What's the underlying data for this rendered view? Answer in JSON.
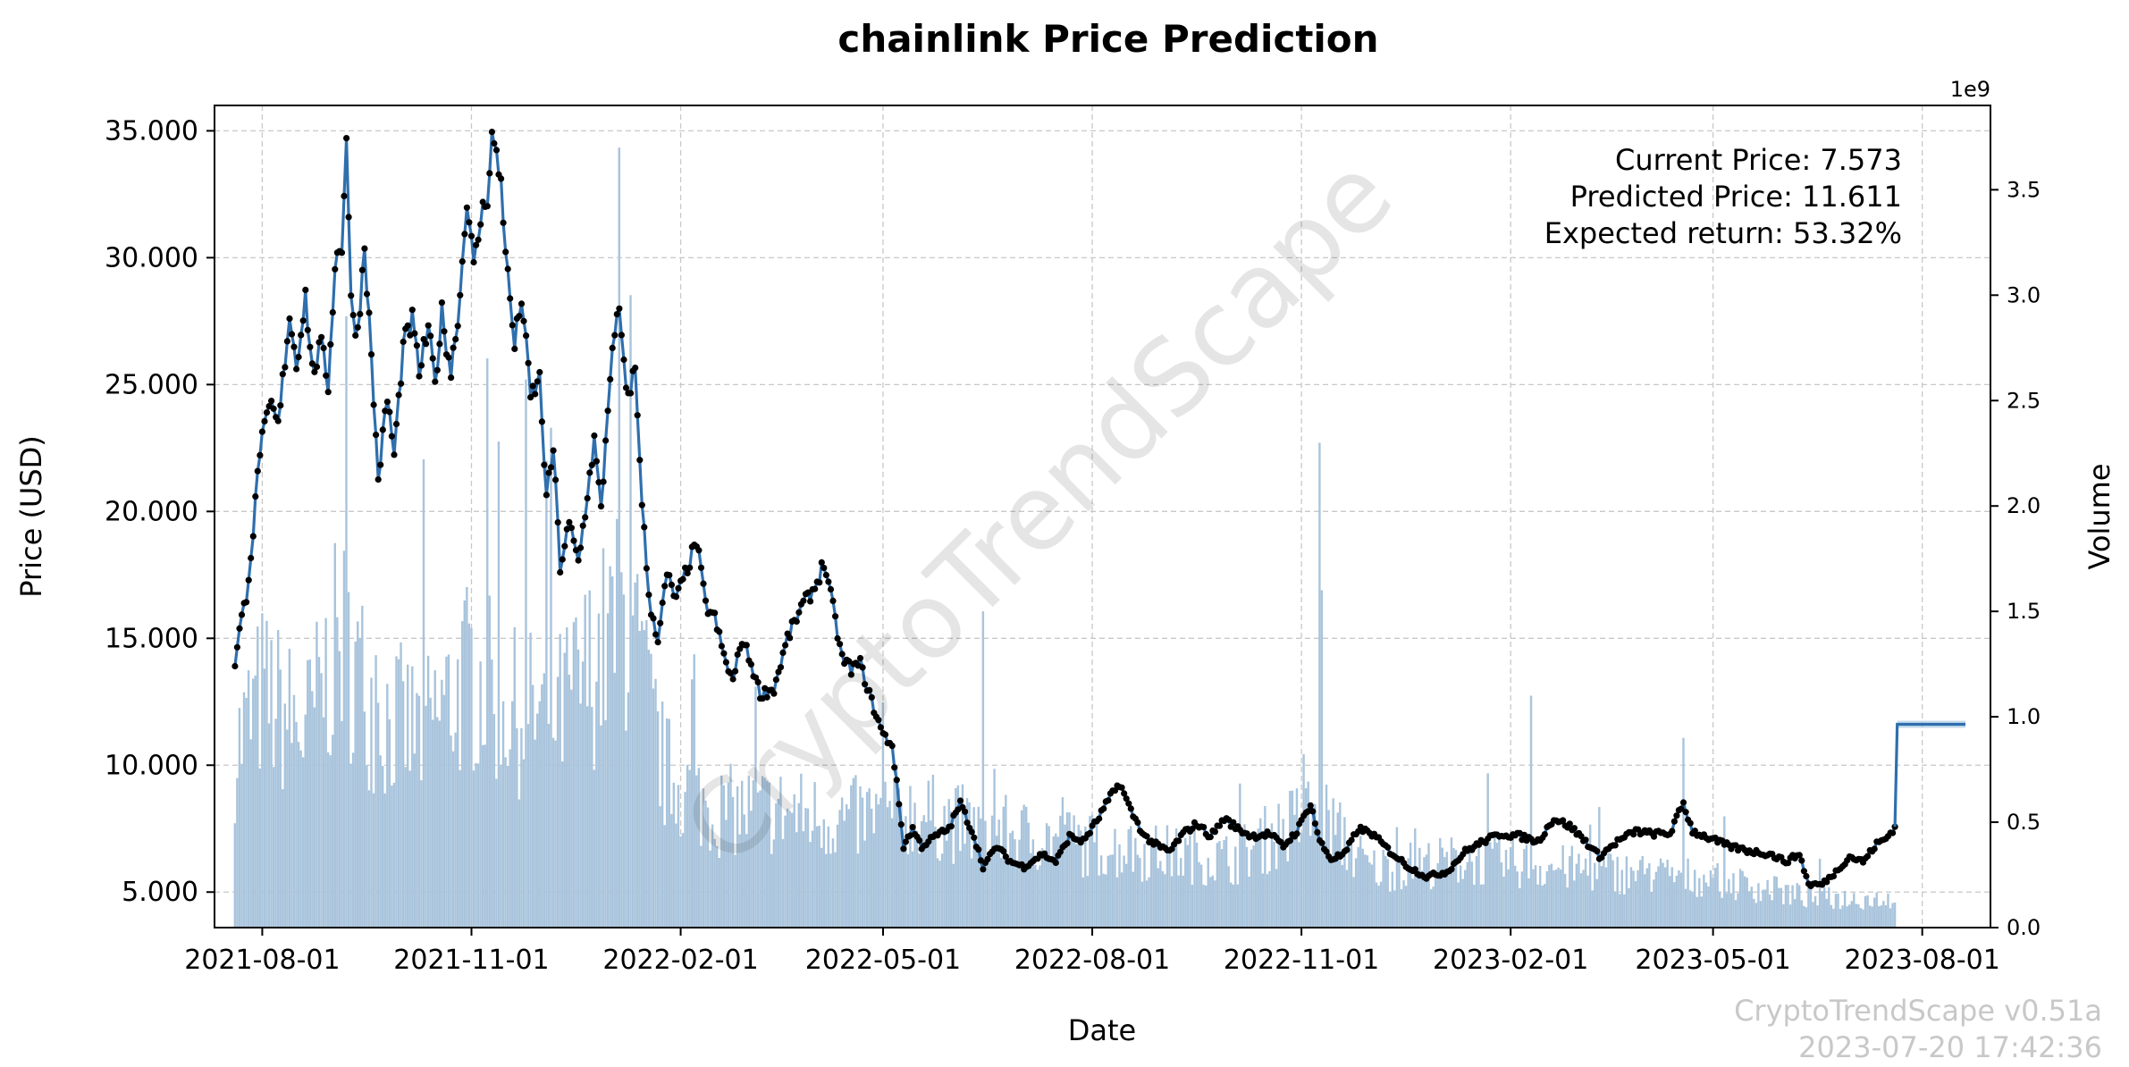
{
  "chart_data": {
    "type": "line",
    "title": "chainlink Price Prediction",
    "xlabel": "Date",
    "ylabel": "Price (USD)",
    "y2label": "Volume",
    "y2_multiplier_label": "1e9",
    "grid": true,
    "xlim": [
      "2021-07-11",
      "2023-08-31"
    ],
    "ylim": [
      3.6,
      36.0
    ],
    "y2lim": [
      0.0,
      3.9
    ],
    "x_ticks": [
      "2021-08-01",
      "2021-11-01",
      "2022-02-01",
      "2022-05-01",
      "2022-08-01",
      "2022-11-01",
      "2023-02-01",
      "2023-05-01",
      "2023-08-01"
    ],
    "y_ticks": [
      "5.000",
      "10.000",
      "15.000",
      "20.000",
      "25.000",
      "30.000",
      "35.000"
    ],
    "y2_ticks": [
      "0.0",
      "0.5",
      "1.0",
      "1.5",
      "2.0",
      "2.5",
      "3.0",
      "3.5"
    ],
    "price_anchors": [
      [
        "2021-07-20",
        13.9
      ],
      [
        "2021-07-22",
        15.3
      ],
      [
        "2021-07-25",
        16.7
      ],
      [
        "2021-07-28",
        19.2
      ],
      [
        "2021-07-31",
        22.5
      ],
      [
        "2021-08-05",
        24.2
      ],
      [
        "2021-08-08",
        23.3
      ],
      [
        "2021-08-13",
        27.8
      ],
      [
        "2021-08-16",
        25.8
      ],
      [
        "2021-08-20",
        28.5
      ],
      [
        "2021-08-23",
        25.5
      ],
      [
        "2021-08-27",
        26.5
      ],
      [
        "2021-08-30",
        25.0
      ],
      [
        "2021-09-02",
        29.8
      ],
      [
        "2021-09-05",
        30.5
      ],
      [
        "2021-09-07",
        34.9
      ],
      [
        "2021-09-09",
        28.2
      ],
      [
        "2021-09-12",
        27.0
      ],
      [
        "2021-09-15",
        30.6
      ],
      [
        "2021-09-18",
        26.0
      ],
      [
        "2021-09-21",
        21.3
      ],
      [
        "2021-09-25",
        24.5
      ],
      [
        "2021-09-28",
        22.2
      ],
      [
        "2021-10-02",
        26.5
      ],
      [
        "2021-10-06",
        27.5
      ],
      [
        "2021-10-09",
        25.5
      ],
      [
        "2021-10-13",
        27.2
      ],
      [
        "2021-10-16",
        25.0
      ],
      [
        "2021-10-19",
        27.8
      ],
      [
        "2021-10-23",
        25.5
      ],
      [
        "2021-10-27",
        28.5
      ],
      [
        "2021-10-30",
        32.5
      ],
      [
        "2021-11-02",
        29.5
      ],
      [
        "2021-11-05",
        31.5
      ],
      [
        "2021-11-08",
        32.5
      ],
      [
        "2021-11-10",
        34.8
      ],
      [
        "2021-11-14",
        33.0
      ],
      [
        "2021-11-17",
        29.2
      ],
      [
        "2021-11-20",
        26.5
      ],
      [
        "2021-11-23",
        28.5
      ],
      [
        "2021-11-27",
        24.5
      ],
      [
        "2021-12-01",
        25.2
      ],
      [
        "2021-12-04",
        20.5
      ],
      [
        "2021-12-07",
        22.5
      ],
      [
        "2021-12-10",
        17.8
      ],
      [
        "2021-12-14",
        19.5
      ],
      [
        "2021-12-18",
        18.0
      ],
      [
        "2021-12-21",
        20.0
      ],
      [
        "2021-12-25",
        22.8
      ],
      [
        "2021-12-28",
        20.0
      ],
      [
        "2022-01-01",
        25.5
      ],
      [
        "2022-01-05",
        28.0
      ],
      [
        "2022-01-08",
        24.5
      ],
      [
        "2022-01-12",
        25.5
      ],
      [
        "2022-01-15",
        20.5
      ],
      [
        "2022-01-18",
        16.5
      ],
      [
        "2022-01-22",
        15.0
      ],
      [
        "2022-01-26",
        17.5
      ],
      [
        "2022-01-30",
        16.5
      ],
      [
        "2022-02-04",
        17.8
      ],
      [
        "2022-02-08",
        18.8
      ],
      [
        "2022-02-12",
        16.3
      ],
      [
        "2022-02-16",
        15.8
      ],
      [
        "2022-02-20",
        14.3
      ],
      [
        "2022-02-24",
        13.3
      ],
      [
        "2022-02-28",
        15.0
      ],
      [
        "2022-03-04",
        14.0
      ],
      [
        "2022-03-08",
        12.8
      ],
      [
        "2022-03-14",
        13.0
      ],
      [
        "2022-03-20",
        15.0
      ],
      [
        "2022-03-26",
        16.2
      ],
      [
        "2022-04-01",
        17.0
      ],
      [
        "2022-04-05",
        18.0
      ],
      [
        "2022-04-09",
        16.2
      ],
      [
        "2022-04-13",
        14.2
      ],
      [
        "2022-04-17",
        13.8
      ],
      [
        "2022-04-21",
        14.0
      ],
      [
        "2022-04-26",
        12.5
      ],
      [
        "2022-05-01",
        11.2
      ],
      [
        "2022-05-05",
        10.8
      ],
      [
        "2022-05-08",
        8.5
      ],
      [
        "2022-05-10",
        6.8
      ],
      [
        "2022-05-14",
        7.5
      ],
      [
        "2022-05-18",
        6.8
      ],
      [
        "2022-05-24",
        7.2
      ],
      [
        "2022-05-30",
        7.5
      ],
      [
        "2022-06-04",
        8.5
      ],
      [
        "2022-06-10",
        7.2
      ],
      [
        "2022-06-14",
        6.0
      ],
      [
        "2022-06-20",
        6.8
      ],
      [
        "2022-06-26",
        6.2
      ],
      [
        "2022-07-02",
        6.0
      ],
      [
        "2022-07-10",
        6.5
      ],
      [
        "2022-07-16",
        6.2
      ],
      [
        "2022-07-22",
        7.2
      ],
      [
        "2022-07-28",
        7.0
      ],
      [
        "2022-08-03",
        7.8
      ],
      [
        "2022-08-08",
        8.6
      ],
      [
        "2022-08-13",
        9.3
      ],
      [
        "2022-08-18",
        8.2
      ],
      [
        "2022-08-24",
        7.2
      ],
      [
        "2022-08-30",
        6.8
      ],
      [
        "2022-09-04",
        6.6
      ],
      [
        "2022-09-10",
        7.3
      ],
      [
        "2022-09-16",
        7.7
      ],
      [
        "2022-09-22",
        7.2
      ],
      [
        "2022-09-28",
        7.9
      ],
      [
        "2022-10-04",
        7.5
      ],
      [
        "2022-10-10",
        7.2
      ],
      [
        "2022-10-18",
        7.3
      ],
      [
        "2022-10-24",
        6.8
      ],
      [
        "2022-10-30",
        7.4
      ],
      [
        "2022-11-05",
        8.5
      ],
      [
        "2022-11-09",
        7.0
      ],
      [
        "2022-11-14",
        6.3
      ],
      [
        "2022-11-20",
        6.5
      ],
      [
        "2022-11-26",
        7.5
      ],
      [
        "2022-12-02",
        7.3
      ],
      [
        "2022-12-10",
        6.6
      ],
      [
        "2022-12-18",
        6.0
      ],
      [
        "2022-12-26",
        5.6
      ],
      [
        "2023-01-04",
        5.8
      ],
      [
        "2023-01-12",
        6.6
      ],
      [
        "2023-01-20",
        7.0
      ],
      [
        "2023-01-28",
        7.3
      ],
      [
        "2023-02-05",
        7.2
      ],
      [
        "2023-02-13",
        7.0
      ],
      [
        "2023-02-20",
        7.9
      ],
      [
        "2023-02-27",
        7.6
      ],
      [
        "2023-03-06",
        7.0
      ],
      [
        "2023-03-12",
        6.4
      ],
      [
        "2023-03-20",
        7.0
      ],
      [
        "2023-03-28",
        7.4
      ],
      [
        "2023-04-04",
        7.3
      ],
      [
        "2023-04-12",
        7.3
      ],
      [
        "2023-04-18",
        8.5
      ],
      [
        "2023-04-22",
        7.4
      ],
      [
        "2023-04-30",
        7.1
      ],
      [
        "2023-05-08",
        6.8
      ],
      [
        "2023-05-18",
        6.6
      ],
      [
        "2023-05-26",
        6.5
      ],
      [
        "2023-06-02",
        6.2
      ],
      [
        "2023-06-08",
        6.5
      ],
      [
        "2023-06-12",
        5.3
      ],
      [
        "2023-06-18",
        5.3
      ],
      [
        "2023-06-24",
        5.8
      ],
      [
        "2023-06-30",
        6.4
      ],
      [
        "2023-07-06",
        6.2
      ],
      [
        "2023-07-12",
        6.9
      ],
      [
        "2023-07-16",
        7.1
      ],
      [
        "2023-07-20",
        7.573
      ]
    ],
    "prediction": {
      "start": [
        "2023-07-20",
        7.573
      ],
      "jump": [
        "2023-07-21",
        11.611
      ],
      "end": [
        "2023-08-20",
        11.611
      ]
    },
    "volume_levels": [
      [
        "2021-07-20",
        0.9
      ],
      [
        "2021-08-01",
        1.2
      ],
      [
        "2021-08-20",
        1.0
      ],
      [
        "2021-09-05",
        1.5
      ],
      [
        "2021-09-20",
        1.1
      ],
      [
        "2021-10-10",
        1.0
      ],
      [
        "2021-11-01",
        1.3
      ],
      [
        "2021-11-20",
        1.1
      ],
      [
        "2021-12-10",
        1.1
      ],
      [
        "2022-01-08",
        1.6
      ],
      [
        "2022-01-25",
        0.8
      ],
      [
        "2022-02-15",
        0.6
      ],
      [
        "2022-03-15",
        0.6
      ],
      [
        "2022-04-15",
        0.55
      ],
      [
        "2022-05-10",
        0.6
      ],
      [
        "2022-06-15",
        0.5
      ],
      [
        "2022-08-15",
        0.4
      ],
      [
        "2022-10-01",
        0.35
      ],
      [
        "2022-11-08",
        0.6
      ],
      [
        "2022-12-01",
        0.3
      ],
      [
        "2023-01-15",
        0.35
      ],
      [
        "2023-03-01",
        0.3
      ],
      [
        "2023-05-01",
        0.25
      ],
      [
        "2023-06-15",
        0.15
      ],
      [
        "2023-07-20",
        0.15
      ]
    ],
    "volume_spikes": [
      [
        "2021-09-07",
        2.9
      ],
      [
        "2021-11-08",
        2.7
      ],
      [
        "2021-11-25",
        2.6
      ],
      [
        "2022-01-05",
        3.7
      ],
      [
        "2022-01-10",
        3.0
      ],
      [
        "2022-06-14",
        1.5
      ],
      [
        "2022-11-09",
        2.3
      ],
      [
        "2022-11-10",
        1.6
      ],
      [
        "2023-04-18",
        0.9
      ],
      [
        "2023-02-10",
        1.1
      ]
    ],
    "annotations": [
      "Current Price: 7.573",
      "Predicted Price: 11.611",
      "Expected return: 53.32%"
    ],
    "watermark": "CryptoTrendScape",
    "footer": [
      "CryptoTrendScape v0.51a",
      "2023-07-20 17:42:36"
    ],
    "colors": {
      "price_line": "#2f6fad",
      "price_marker": "#000000",
      "volume": "#a9c4dc",
      "prediction": "#2f6fad"
    }
  }
}
